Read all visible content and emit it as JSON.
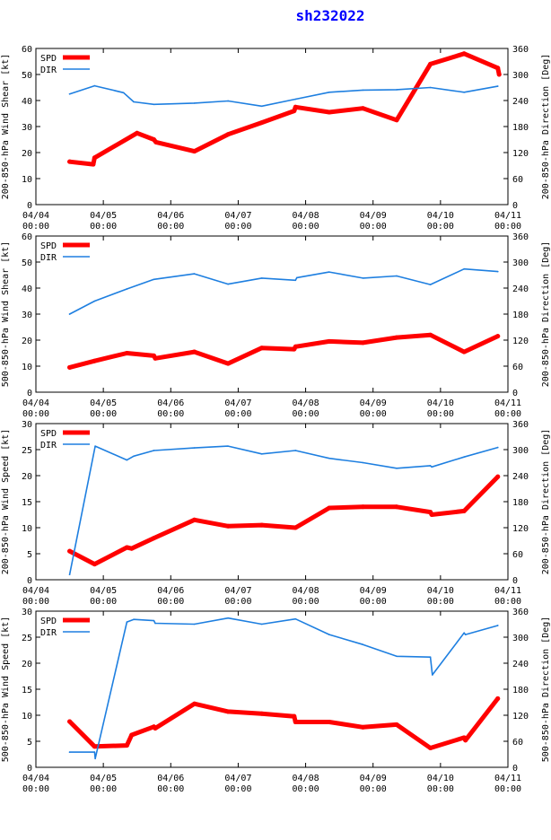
{
  "title": "sh232022",
  "x_ticks": [
    {
      "top": "04/04",
      "bottom": "00:00"
    },
    {
      "top": "04/05",
      "bottom": "00:00"
    },
    {
      "top": "04/06",
      "bottom": "00:00"
    },
    {
      "top": "04/07",
      "bottom": "00:00"
    },
    {
      "top": "04/08",
      "bottom": "00:00"
    },
    {
      "top": "04/09",
      "bottom": "00:00"
    },
    {
      "top": "04/10",
      "bottom": "00:00"
    },
    {
      "top": "04/11",
      "bottom": "00:00"
    }
  ],
  "colors": {
    "spd": "#ff0000",
    "dir": "#1e7fe0",
    "axis": "#000000",
    "title": "#0000ff"
  },
  "chart_data": [
    {
      "type": "line",
      "ylabel": "200-850-hPa Wind Shear [kt]",
      "y2label": "200-850-hPa Direction [Deg]",
      "ylim": [
        0,
        60
      ],
      "y2lim": [
        0,
        360
      ],
      "yticks": [
        0,
        10,
        20,
        30,
        40,
        50,
        60
      ],
      "y2ticks": [
        0,
        60,
        120,
        180,
        240,
        300,
        360
      ],
      "xlim": [
        0,
        7
      ],
      "legend": [
        "SPD",
        "DIR"
      ],
      "series": [
        {
          "name": "SPD",
          "axis": "left",
          "x": [
            0.5,
            0.85,
            0.87,
            1.5,
            1.75,
            1.78,
            2.35,
            2.85,
            3.35,
            3.83,
            3.85,
            4.35,
            4.85,
            5.35,
            5.85,
            6.35,
            6.85,
            6.87
          ],
          "y": [
            16.5,
            15.5,
            18,
            27.5,
            25,
            24,
            20.5,
            27,
            31.5,
            36,
            37.5,
            35.5,
            37,
            32.5,
            54,
            58,
            52.5,
            50
          ]
        },
        {
          "name": "DIR",
          "axis": "right",
          "x": [
            0.5,
            0.87,
            1.3,
            1.45,
            1.75,
            2.35,
            2.85,
            3.35,
            3.85,
            4.35,
            4.85,
            5.35,
            5.85,
            6.35,
            6.85
          ],
          "y": [
            255,
            274,
            258,
            237,
            231,
            234,
            239,
            227,
            243,
            259,
            264,
            265,
            270,
            259,
            273
          ]
        }
      ]
    },
    {
      "type": "line",
      "ylabel": "500-850-hPa Wind Shear [kt]",
      "y2label": "200-850-hPa Direction [Deg]",
      "ylim": [
        0,
        60
      ],
      "y2lim": [
        0,
        360
      ],
      "yticks": [
        0,
        10,
        20,
        30,
        40,
        50,
        60
      ],
      "y2ticks": [
        0,
        60,
        120,
        180,
        240,
        300,
        360
      ],
      "xlim": [
        0,
        7
      ],
      "legend": [
        "SPD",
        "DIR"
      ],
      "series": [
        {
          "name": "SPD",
          "axis": "left",
          "x": [
            0.5,
            0.87,
            1.35,
            1.75,
            1.77,
            2.35,
            2.85,
            3.35,
            3.83,
            3.85,
            4.35,
            4.85,
            5.35,
            5.85,
            6.35,
            6.85
          ],
          "y": [
            9.5,
            12,
            15,
            14,
            13,
            15.5,
            11,
            17,
            16.5,
            17.5,
            19.5,
            19,
            21,
            22,
            15.5,
            21.5
          ]
        },
        {
          "name": "DIR",
          "axis": "right",
          "x": [
            0.5,
            0.87,
            1.35,
            1.75,
            2.35,
            2.85,
            3.35,
            3.85,
            3.87,
            4.35,
            4.85,
            5.35,
            5.85,
            6.35,
            6.85
          ],
          "y": [
            180,
            210,
            238,
            260,
            273,
            249,
            263,
            258,
            264,
            277,
            263,
            268,
            248,
            284,
            278
          ]
        }
      ]
    },
    {
      "type": "line",
      "ylabel": "200-850-hPa Wind Speed [kt]",
      "y2label": "200-850-hPa Direction [Deg]",
      "ylim": [
        0,
        30
      ],
      "y2lim": [
        0,
        360
      ],
      "yticks": [
        0,
        5,
        10,
        15,
        20,
        25,
        30
      ],
      "y2ticks": [
        0,
        60,
        120,
        180,
        240,
        300,
        360
      ],
      "xlim": [
        0,
        7
      ],
      "legend": [
        "SPD",
        "DIR"
      ],
      "series": [
        {
          "name": "SPD",
          "axis": "left",
          "x": [
            0.5,
            0.87,
            1.35,
            1.42,
            1.75,
            2.35,
            2.85,
            3.35,
            3.85,
            4.35,
            4.85,
            5.35,
            5.85,
            5.87,
            6.35,
            6.85
          ],
          "y": [
            5.5,
            3,
            6.2,
            6,
            8,
            11.5,
            10.3,
            10.5,
            10,
            13.8,
            14,
            14,
            13,
            12.5,
            13.2,
            19.8
          ]
        },
        {
          "name": "DIR",
          "axis": "right",
          "x": [
            0.5,
            0.88,
            1.35,
            1.45,
            1.75,
            2.35,
            2.85,
            3.35,
            3.85,
            4.35,
            4.85,
            5.35,
            5.85,
            5.87,
            6.35,
            6.85
          ],
          "y": [
            12,
            308,
            276,
            285,
            298,
            304,
            308,
            290,
            298,
            280,
            270,
            257,
            263,
            260,
            283,
            305
          ]
        }
      ]
    },
    {
      "type": "line",
      "ylabel": "500-850-hPa Wind Speed [kt]",
      "y2label": "500-850-hPa Direction [Deg]",
      "ylim": [
        0,
        30
      ],
      "y2lim": [
        0,
        360
      ],
      "yticks": [
        0,
        5,
        10,
        15,
        20,
        25,
        30
      ],
      "y2ticks": [
        0,
        60,
        120,
        180,
        240,
        300,
        360
      ],
      "xlim": [
        0,
        7
      ],
      "legend": [
        "SPD",
        "DIR"
      ],
      "series": [
        {
          "name": "SPD",
          "axis": "left",
          "x": [
            0.5,
            0.87,
            1.35,
            1.42,
            1.75,
            1.77,
            2.35,
            2.85,
            3.35,
            3.83,
            3.85,
            4.35,
            4.85,
            5.35,
            5.85,
            6.35,
            6.37,
            6.85
          ],
          "y": [
            8.8,
            4,
            4.2,
            6.2,
            7.8,
            7.5,
            12.2,
            10.7,
            10.3,
            9.8,
            8.7,
            8.7,
            7.7,
            8.2,
            3.7,
            5.7,
            5.2,
            13.2
          ]
        },
        {
          "name": "DIR",
          "axis": "right",
          "x": [
            0.5,
            0.87,
            0.88,
            1.35,
            1.45,
            1.75,
            1.77,
            2.35,
            2.85,
            3.35,
            3.85,
            4.35,
            4.85,
            5.35,
            5.85,
            5.88,
            6.35,
            6.37,
            6.85
          ],
          "y": [
            35,
            35,
            20,
            335,
            341,
            338,
            332,
            330,
            344,
            330,
            342,
            306,
            283,
            256,
            254,
            213,
            310,
            306,
            327
          ]
        }
      ]
    }
  ]
}
